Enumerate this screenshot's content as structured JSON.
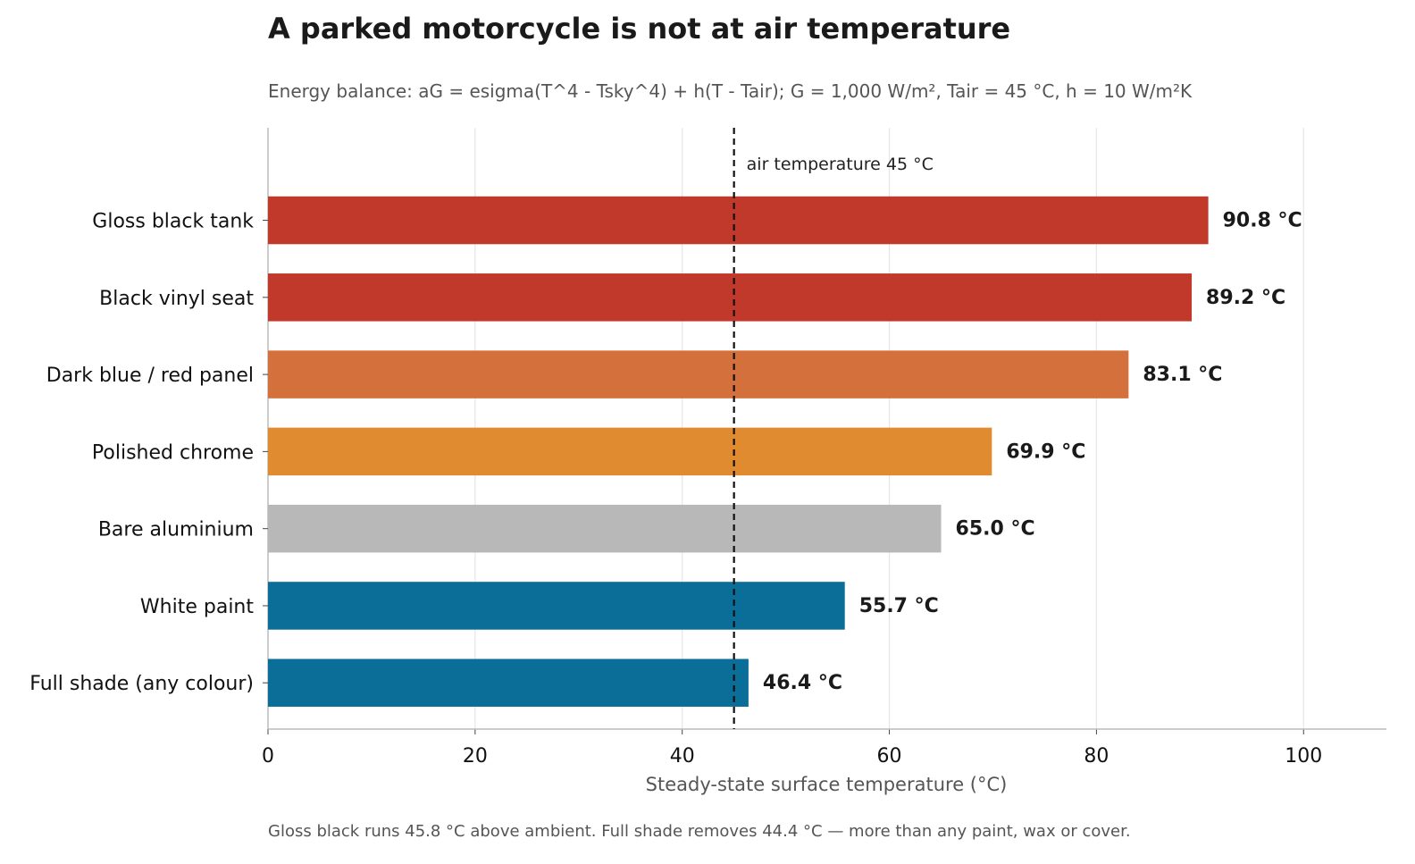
{
  "chart_data": {
    "type": "bar",
    "orientation": "horizontal",
    "title": "A parked motorcycle is not at air temperature",
    "subtitle": "Energy balance: aG = esigma(T^4 - Tsky^4) + h(T - Tair);  G = 1,000 W/m², Tair = 45 °C, h = 10 W/m²K",
    "xlabel": "Steady-state surface temperature (°C)",
    "ylabel": "",
    "xlim": [
      0,
      108
    ],
    "xticks": [
      0,
      20,
      40,
      60,
      80,
      100
    ],
    "grid": "vertical",
    "categories": [
      "Gloss black tank",
      "Black vinyl seat",
      "Dark blue / red panel",
      "Polished chrome",
      "Bare aluminium",
      "White paint",
      "Full shade (any colour)"
    ],
    "values": [
      90.8,
      89.2,
      83.1,
      69.9,
      65.0,
      55.7,
      46.4
    ],
    "value_labels": [
      "90.8 °C",
      "89.2 °C",
      "83.1 °C",
      "69.9 °C",
      "65.0 °C",
      "55.7 °C",
      "46.4 °C"
    ],
    "colors": [
      "#c0392b",
      "#c0392b",
      "#d4703b",
      "#e08b2f",
      "#b8b8b8",
      "#0b6e99",
      "#0b6e99"
    ],
    "reference_line": {
      "value": 45,
      "label": "air temperature 45 °C",
      "style": "dashed"
    },
    "footnote": "Gloss black runs 45.8 °C above ambient. Full shade removes 44.4 °C — more than any paint, wax or cover."
  }
}
